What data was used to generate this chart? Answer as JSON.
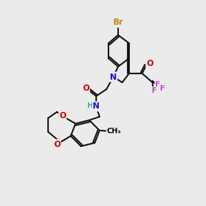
{
  "background_color": "#ebebeb",
  "atom_colors": {
    "Br": "#cc8800",
    "N": "#1111cc",
    "O": "#cc0000",
    "F": "#cc44cc",
    "H": "#44aaaa",
    "C": "#000000",
    "bond": "#000000"
  }
}
